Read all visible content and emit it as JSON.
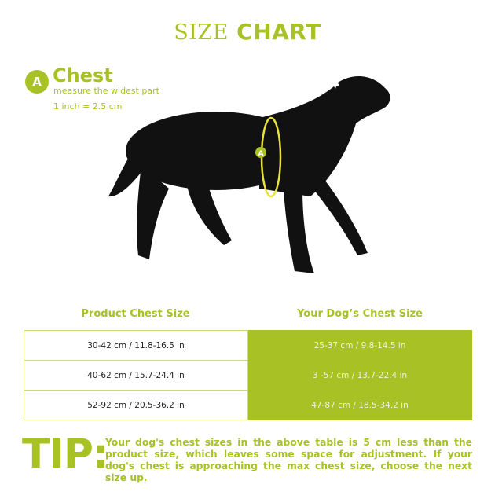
{
  "title": {
    "part1": "SIZE",
    "part2": "CHART"
  },
  "measure": {
    "badge": "A",
    "name": "Chest",
    "instruction": "measure the widest part",
    "conversion": "1 inch = 2.5 cm",
    "marker_label": "A"
  },
  "colors": {
    "accent": "#a8c226",
    "marker": "#e8e23a"
  },
  "table": {
    "headers": [
      "Product Chest Size",
      "Your Dog’s Chest Size"
    ],
    "rows": [
      {
        "product": "30-42 cm / 11.8-16.5 in",
        "dog": "25-37 cm / 9.8-14.5 in"
      },
      {
        "product": "40-62 cm / 15.7-24.4 in",
        "dog": "3 -57 cm / 13.7-22.4 in"
      },
      {
        "product": "52-92 cm / 20.5-36.2 in",
        "dog": "47-87 cm / 18.5-34.2 in"
      }
    ]
  },
  "tip": {
    "label": "TIP:",
    "text": "Your dog's chest sizes in the above table is 5 cm less than the product size, which leaves some space for adjustment. If your dog's chest is approaching the max chest size, choose the next size up."
  }
}
